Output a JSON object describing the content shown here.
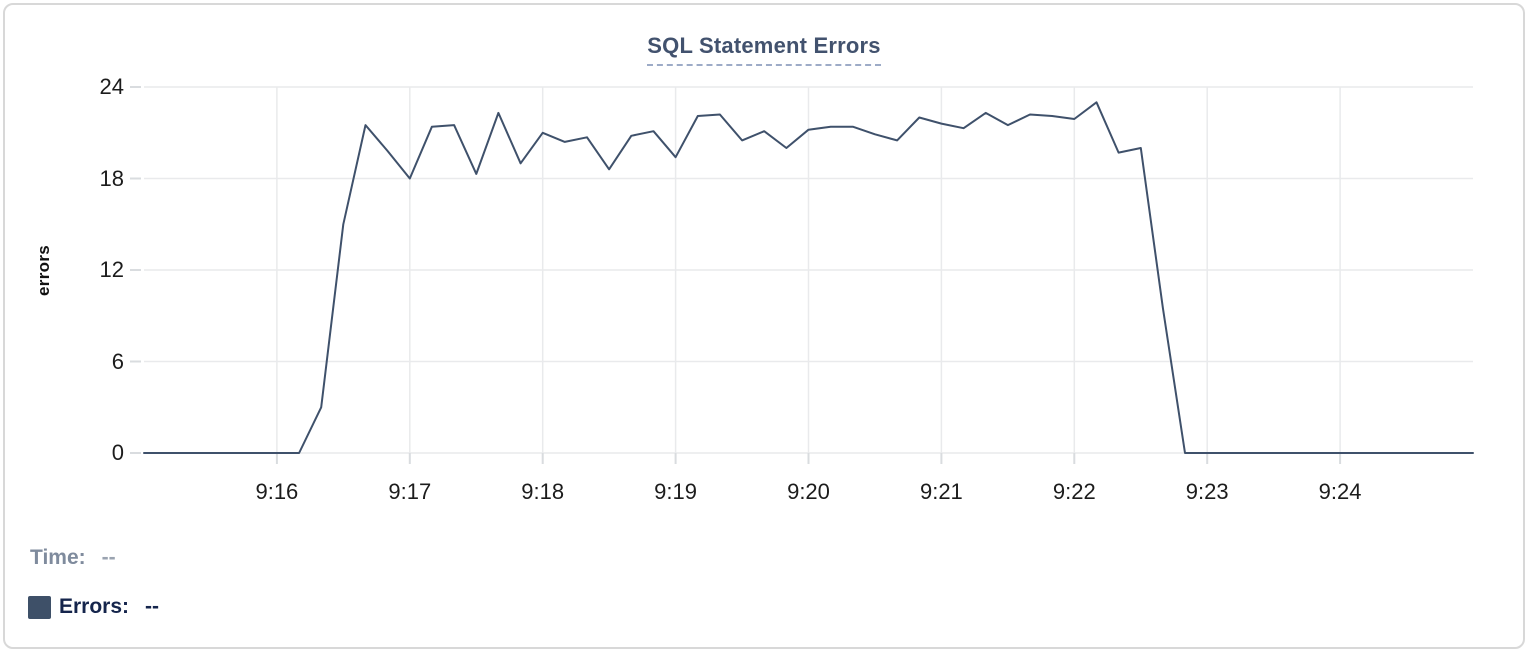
{
  "chart_data": {
    "type": "line",
    "title": "SQL Statement Errors",
    "xlabel": "",
    "ylabel": "errors",
    "ylim": [
      0,
      24
    ],
    "y_ticks": [
      0,
      6,
      12,
      18,
      24
    ],
    "xlim_seconds": [
      0,
      600
    ],
    "x_ticks": [
      {
        "label": "9:16",
        "t": 60
      },
      {
        "label": "9:17",
        "t": 120
      },
      {
        "label": "9:18",
        "t": 180
      },
      {
        "label": "9:19",
        "t": 240
      },
      {
        "label": "9:20",
        "t": 300
      },
      {
        "label": "9:21",
        "t": 360
      },
      {
        "label": "9:22",
        "t": 420
      },
      {
        "label": "9:23",
        "t": 480
      },
      {
        "label": "9:24",
        "t": 540
      }
    ],
    "grid": true,
    "legend_position": "bottom-left",
    "colors": {
      "line": "#3f516b",
      "gridline": "#e9eaec",
      "tick_stub": "#d9dcdf",
      "title": "#42526e",
      "title_underline": "#9dabc7",
      "tick_text": "#1c1c1c"
    },
    "series": [
      {
        "name": "Errors",
        "color": "#3f516b",
        "points": [
          [
            0,
            0
          ],
          [
            10,
            0
          ],
          [
            20,
            0
          ],
          [
            30,
            0
          ],
          [
            40,
            0
          ],
          [
            50,
            0
          ],
          [
            60,
            0
          ],
          [
            70,
            0
          ],
          [
            80,
            3
          ],
          [
            90,
            15
          ],
          [
            100,
            21.5
          ],
          [
            110,
            19.8
          ],
          [
            120,
            18
          ],
          [
            130,
            21.4
          ],
          [
            140,
            21.5
          ],
          [
            150,
            18.3
          ],
          [
            160,
            22.3
          ],
          [
            170,
            19
          ],
          [
            180,
            21
          ],
          [
            190,
            20.4
          ],
          [
            200,
            20.7
          ],
          [
            210,
            18.6
          ],
          [
            220,
            20.8
          ],
          [
            230,
            21.1
          ],
          [
            240,
            19.4
          ],
          [
            250,
            22.1
          ],
          [
            260,
            22.2
          ],
          [
            270,
            20.5
          ],
          [
            280,
            21.1
          ],
          [
            290,
            20
          ],
          [
            300,
            21.2
          ],
          [
            310,
            21.4
          ],
          [
            320,
            21.4
          ],
          [
            330,
            20.9
          ],
          [
            340,
            20.5
          ],
          [
            350,
            22
          ],
          [
            360,
            21.6
          ],
          [
            370,
            21.3
          ],
          [
            380,
            22.3
          ],
          [
            390,
            21.5
          ],
          [
            400,
            22.2
          ],
          [
            410,
            22.1
          ],
          [
            420,
            21.9
          ],
          [
            430,
            23
          ],
          [
            440,
            19.7
          ],
          [
            450,
            20
          ],
          [
            460,
            9.5
          ],
          [
            470,
            0
          ],
          [
            480,
            0
          ],
          [
            490,
            0
          ],
          [
            500,
            0
          ],
          [
            510,
            0
          ],
          [
            520,
            0
          ],
          [
            530,
            0
          ],
          [
            540,
            0
          ],
          [
            550,
            0
          ],
          [
            560,
            0
          ],
          [
            570,
            0
          ],
          [
            580,
            0
          ],
          [
            590,
            0
          ],
          [
            600,
            0
          ]
        ]
      }
    ]
  },
  "readout": {
    "time_label": "Time:",
    "time_value": "--",
    "errors_label": "Errors:",
    "errors_value": "--",
    "swatch_color": "#3e5068"
  }
}
